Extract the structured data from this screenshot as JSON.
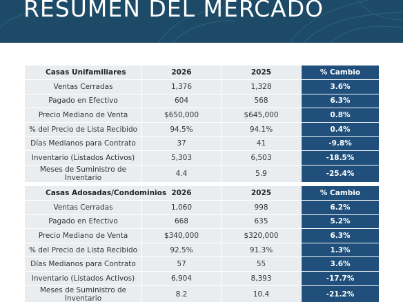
{
  "header": {
    "title": "RESUMEN DEL MERCADO"
  },
  "tables": [
    {
      "headers": [
        "Casas Unifamiliares",
        "2026",
        "2025",
        "% Cambio"
      ],
      "rows": [
        [
          "Ventas Cerradas",
          "1,376",
          "1,328",
          "3.6%"
        ],
        [
          "Pagado en Efectivo",
          "604",
          "568",
          "6.3%"
        ],
        [
          "Precio Mediano de Venta",
          "$650,000",
          "$645,000",
          "0.8%"
        ],
        [
          "% del Precio de Lista Recibido",
          "94.5%",
          "94.1%",
          "0.4%"
        ],
        [
          "Días Medianos para Contrato",
          "37",
          "41",
          "-9.8%"
        ],
        [
          "Inventario (Listados Activos)",
          "5,303",
          "6,503",
          "-18.5%"
        ],
        [
          "Meses de Suministro de Inventario",
          "4.4",
          "5.9",
          "-25.4%"
        ]
      ]
    },
    {
      "headers": [
        "Casas Adosadas/Condominios",
        "2026",
        "2025",
        "% Cambio"
      ],
      "rows": [
        [
          "Ventas Cerradas",
          "1,060",
          "998",
          "6.2%"
        ],
        [
          "Pagado en Efectivo",
          "668",
          "635",
          "5.2%"
        ],
        [
          "Precio Mediano de Venta",
          "$340,000",
          "$320,000",
          "6.3%"
        ],
        [
          "% del Precio de Lista Recibido",
          "92.5%",
          "91.3%",
          "1.3%"
        ],
        [
          "Días Medianos para Contrato",
          "57",
          "55",
          "3.6%"
        ],
        [
          "Inventario (Listados Activos)",
          "6,904",
          "8,393",
          "-17.7%"
        ],
        [
          "Meses de Suministro de Inventario",
          "8.2",
          "10.4",
          "-21.2%"
        ]
      ]
    }
  ]
}
